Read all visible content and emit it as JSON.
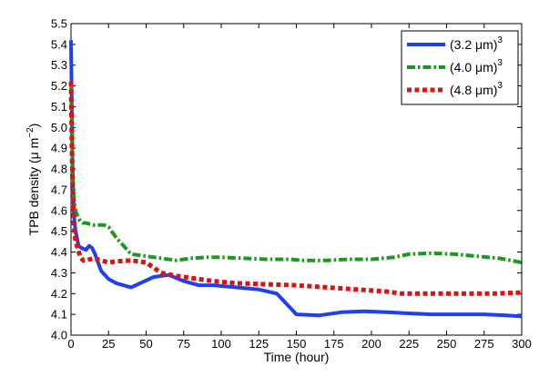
{
  "chart_data": {
    "type": "line",
    "title": "",
    "xlabel": "Time (hour)",
    "ylabel": {
      "main": "TPB density (μ m",
      "sup": "−2",
      "end": ")"
    },
    "xlim": [
      0,
      300
    ],
    "ylim": [
      4.0,
      5.5
    ],
    "xticks": [
      "0",
      "25",
      "50",
      "75",
      "100",
      "125",
      "150",
      "175",
      "200",
      "225",
      "250",
      "275",
      "300"
    ],
    "yticks": [
      "4.0",
      "4.1",
      "4.2",
      "4.3",
      "4.4",
      "4.5",
      "4.6",
      "4.7",
      "4.8",
      "4.9",
      "5.0",
      "5.1",
      "5.2",
      "5.3",
      "5.4",
      "5.5"
    ],
    "grid": false,
    "legend_position": "top-right",
    "series": [
      {
        "name": "(3.2 μm)",
        "name_sup": "3",
        "color": "#1f3ff0",
        "style": "solid",
        "x": [
          0,
          1,
          2,
          3,
          5,
          7,
          10,
          12,
          14,
          16,
          18,
          20,
          25,
          30,
          40,
          55,
          65,
          75,
          85,
          95,
          110,
          125,
          137,
          150,
          165,
          180,
          195,
          210,
          225,
          240,
          260,
          275,
          290,
          300
        ],
        "y": [
          5.42,
          4.8,
          4.57,
          4.5,
          4.43,
          4.42,
          4.41,
          4.43,
          4.42,
          4.39,
          4.35,
          4.31,
          4.27,
          4.25,
          4.23,
          4.28,
          4.29,
          4.26,
          4.24,
          4.24,
          4.23,
          4.22,
          4.2,
          4.1,
          4.095,
          4.11,
          4.115,
          4.11,
          4.105,
          4.1,
          4.1,
          4.1,
          4.095,
          4.09
        ]
      },
      {
        "name": "(4.0 μm)",
        "name_sup": "3",
        "color": "#1a9a1a",
        "style": "dashdot",
        "x": [
          0,
          1,
          2,
          3,
          4,
          6,
          8,
          10,
          15,
          20,
          22,
          25,
          30,
          35,
          40,
          50,
          60,
          70,
          80,
          90,
          100,
          115,
          130,
          145,
          155,
          170,
          185,
          200,
          215,
          225,
          240,
          255,
          270,
          285,
          300
        ],
        "y": [
          5.22,
          4.8,
          4.65,
          4.6,
          4.58,
          4.55,
          4.54,
          4.54,
          4.53,
          4.53,
          4.53,
          4.52,
          4.47,
          4.43,
          4.39,
          4.38,
          4.37,
          4.36,
          4.37,
          4.375,
          4.375,
          4.37,
          4.365,
          4.365,
          4.36,
          4.36,
          4.365,
          4.365,
          4.375,
          4.39,
          4.395,
          4.39,
          4.38,
          4.37,
          4.35
        ]
      },
      {
        "name": "(4.8 μm)",
        "name_sup": "3",
        "color": "#e01010",
        "style": "dotted",
        "x": [
          0,
          1,
          2,
          3,
          4,
          6,
          8,
          10,
          15,
          20,
          25,
          30,
          40,
          50,
          60,
          70,
          80,
          95,
          110,
          130,
          150,
          170,
          190,
          210,
          220,
          240,
          260,
          280,
          300
        ],
        "y": [
          5.22,
          4.7,
          4.52,
          4.45,
          4.43,
          4.38,
          4.36,
          4.36,
          4.37,
          4.36,
          4.35,
          4.355,
          4.36,
          4.35,
          4.3,
          4.285,
          4.275,
          4.26,
          4.25,
          4.245,
          4.24,
          4.23,
          4.22,
          4.21,
          4.2,
          4.2,
          4.2,
          4.2,
          4.205
        ]
      }
    ]
  }
}
